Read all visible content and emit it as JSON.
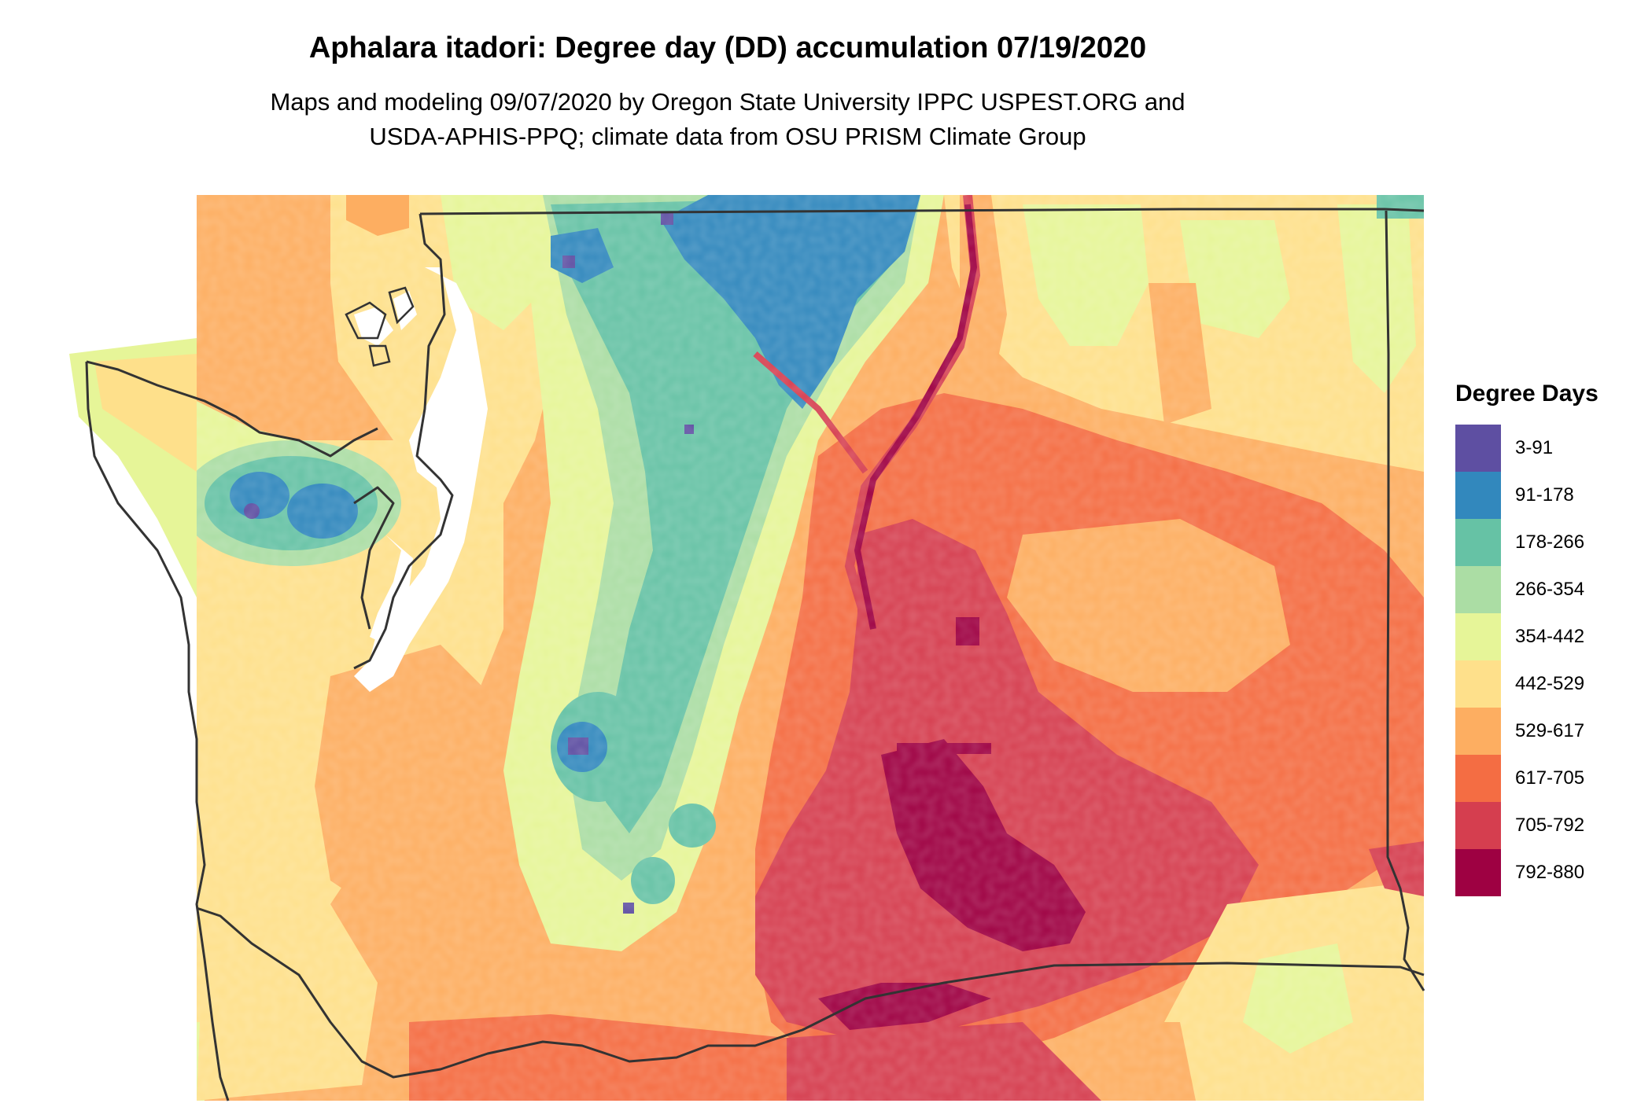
{
  "title": "Aphalara itadori: Degree day (DD) accumulation 07/19/2020",
  "subtitle_lines": [
    "Maps and modeling 09/07/2020 by Oregon State University IPPC USPEST.ORG and",
    "USDA-APHIS-PPQ; climate data from OSU PRISM Climate Group"
  ],
  "legend": {
    "title": "Degree Days",
    "bins": [
      {
        "label": "3-91",
        "color": "#5e4fa2"
      },
      {
        "label": "91-178",
        "color": "#3288bd"
      },
      {
        "label": "178-266",
        "color": "#66c2a5"
      },
      {
        "label": "266-354",
        "color": "#abdda4"
      },
      {
        "label": "354-442",
        "color": "#e6f598"
      },
      {
        "label": "442-529",
        "color": "#fee08b"
      },
      {
        "label": "529-617",
        "color": "#fdae61"
      },
      {
        "label": "617-705",
        "color": "#f46d43"
      },
      {
        "label": "705-792",
        "color": "#d53e4f"
      },
      {
        "label": "792-880",
        "color": "#9e0142"
      }
    ]
  },
  "colors": {
    "boundary": "#333333",
    "background": "#ffffff"
  }
}
